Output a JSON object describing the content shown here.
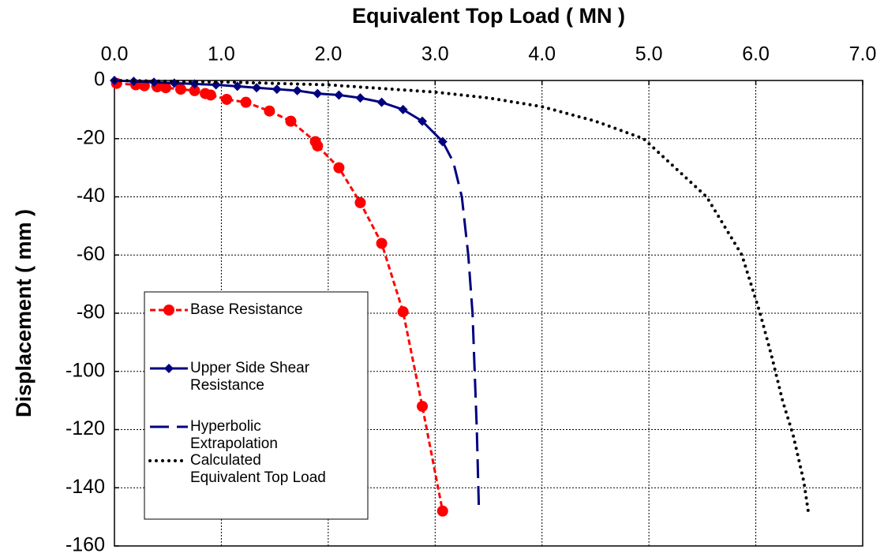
{
  "chart_data": {
    "type": "line",
    "xlabel": "Equivalent Top Load ( MN )",
    "ylabel": "Displacement ( mm )",
    "xlim": [
      0,
      7
    ],
    "ylim": [
      -160,
      0
    ],
    "xticks": [
      {
        "value": 0,
        "label": "0.0"
      },
      {
        "value": 1,
        "label": "1.0"
      },
      {
        "value": 2,
        "label": "2.0"
      },
      {
        "value": 3,
        "label": "3.0"
      },
      {
        "value": 4,
        "label": "4.0"
      },
      {
        "value": 5,
        "label": "5.0"
      },
      {
        "value": 6,
        "label": "6.0"
      },
      {
        "value": 7,
        "label": "7.0"
      }
    ],
    "yticks": [
      0,
      -20,
      -40,
      -60,
      -80,
      -100,
      -120,
      -140,
      -160
    ],
    "grid": true,
    "xaxis_position": "top",
    "legend": "lower left",
    "series": [
      {
        "name": "Base Resistance",
        "color": "#ff0000",
        "linestyle": "dashed",
        "marker": "circle",
        "x": [
          0.02,
          0.2,
          0.28,
          0.4,
          0.48,
          0.62,
          0.75,
          0.85,
          0.9,
          1.05,
          1.23,
          1.45,
          1.65,
          1.88,
          1.9,
          2.1,
          2.3,
          2.5,
          2.7,
          2.88,
          3.07
        ],
        "values": [
          -1,
          -1.5,
          -1.8,
          -2.2,
          -2.5,
          -3,
          -3.5,
          -4.5,
          -5,
          -6.5,
          -7.5,
          -10.5,
          -14,
          -21,
          -22.5,
          -30,
          -42,
          -56,
          -79.5,
          -112,
          -148
        ]
      },
      {
        "name": "Upper Side Shear\nResistance",
        "color": "#000080",
        "linestyle": "solid",
        "marker": "diamond",
        "x": [
          0,
          0.18,
          0.37,
          0.56,
          0.75,
          0.95,
          1.15,
          1.33,
          1.52,
          1.71,
          1.9,
          2.1,
          2.3,
          2.5,
          2.7,
          2.88,
          3.07
        ],
        "values": [
          0,
          -0.3,
          -0.6,
          -0.9,
          -1.2,
          -1.5,
          -2,
          -2.5,
          -3,
          -3.5,
          -4.5,
          -5,
          -6,
          -7.5,
          -10,
          -14,
          -21
        ]
      },
      {
        "name": "Hyperbolic\nExtrapolation",
        "color": "#000080",
        "linestyle": "longdash",
        "marker": "none",
        "x": [
          3.07,
          3.17,
          3.25,
          3.31,
          3.35,
          3.37,
          3.39,
          3.41
        ],
        "values": [
          -21,
          -28,
          -40,
          -60,
          -80,
          -100,
          -120,
          -148
        ]
      },
      {
        "name": "Calculated\nEquivalent Top Load",
        "color": "#000000",
        "linestyle": "dotted",
        "marker": "none",
        "x": [
          0,
          1,
          2,
          3,
          3.5,
          4,
          4.5,
          4.95,
          5.54,
          5.87,
          6.04,
          6.15,
          6.25,
          6.35,
          6.45,
          6.49
        ],
        "values": [
          0,
          -0.5,
          -1.5,
          -4,
          -6,
          -9,
          -14,
          -20,
          -40,
          -60,
          -80,
          -95,
          -110,
          -122,
          -138,
          -148
        ]
      }
    ]
  }
}
